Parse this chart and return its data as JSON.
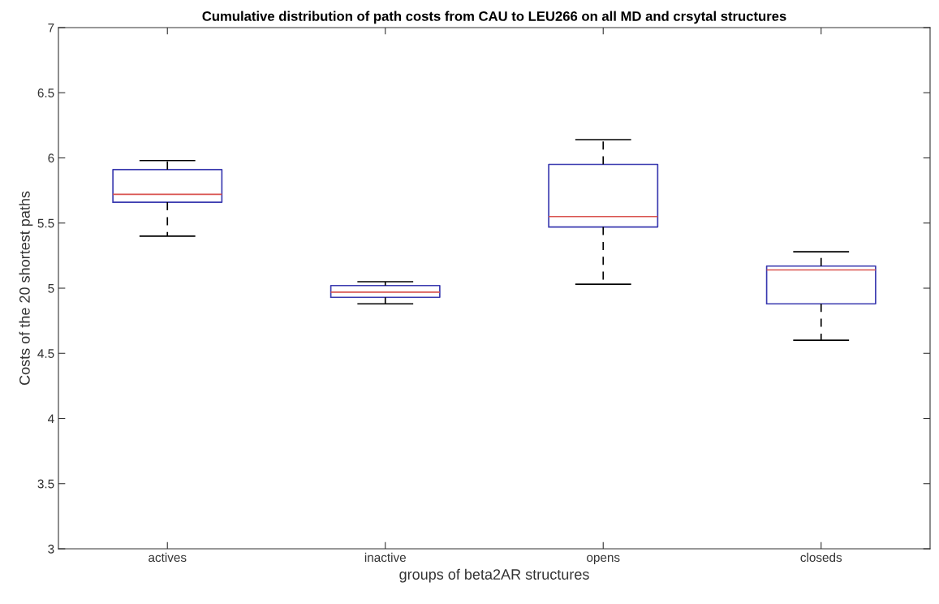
{
  "chart_data": {
    "type": "box",
    "title": "Cumulative distribution of path costs from CAU to LEU266 on all MD and crsytal structures",
    "xlabel": "groups of beta2AR structures",
    "ylabel": "Costs of the 20 shortest paths",
    "categories": [
      "actives",
      "inactive",
      "opens",
      "closeds"
    ],
    "boxes": [
      {
        "low": 5.4,
        "q1": 5.66,
        "median": 5.72,
        "q3": 5.91,
        "high": 5.98
      },
      {
        "low": 4.88,
        "q1": 4.93,
        "median": 4.97,
        "q3": 5.02,
        "high": 5.05
      },
      {
        "low": 5.03,
        "q1": 5.47,
        "median": 5.55,
        "q3": 5.95,
        "high": 6.14
      },
      {
        "low": 4.6,
        "q1": 4.88,
        "median": 5.14,
        "q3": 5.17,
        "high": 5.28
      }
    ],
    "color": "#3b3bb0",
    "ylim": [
      3,
      7
    ],
    "yticks": [
      3,
      3.5,
      4,
      4.5,
      5,
      5.5,
      6,
      6.5,
      7
    ],
    "grid": false,
    "line_style": "dashed"
  }
}
